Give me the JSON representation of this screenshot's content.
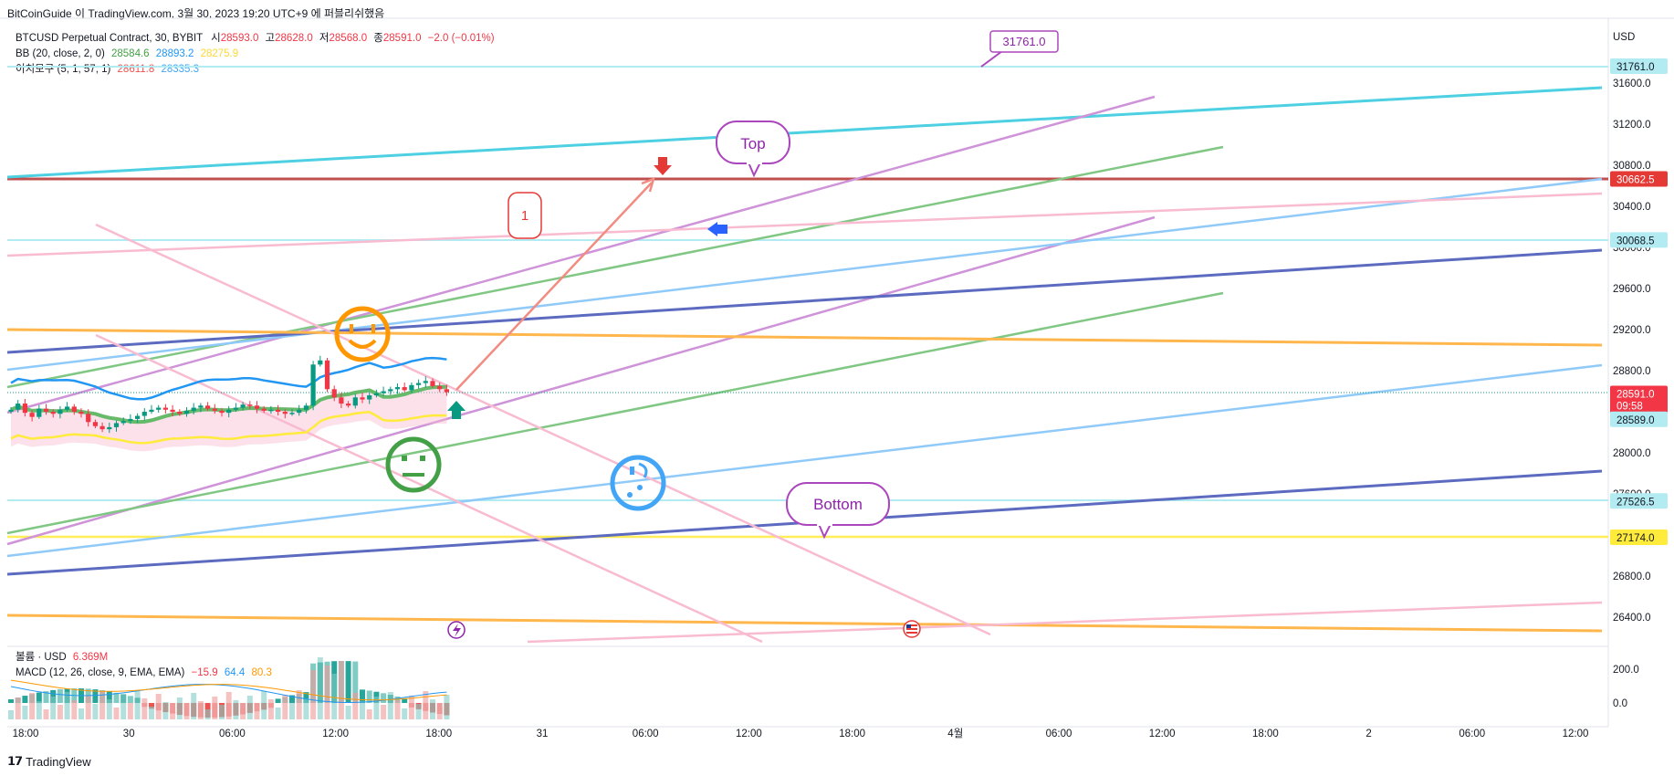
{
  "header": {
    "text": "BitCoinGuide 이 TradingView.com, 3월 30, 2023 19:20 UTC+9 에 퍼블리쉬했음"
  },
  "legend": {
    "symbol": "BTCUSD Perpetual Contract, 30, BYBIT",
    "ohlc": [
      {
        "label": "시",
        "value": "28593.0"
      },
      {
        "label": "고",
        "value": "28628.0"
      },
      {
        "label": "저",
        "value": "28568.0"
      },
      {
        "label": "종",
        "value": "28591.0"
      }
    ],
    "change": "−2.0 (−0.01%)",
    "bb": {
      "name": "BB (20, close, 2, 0)",
      "values": [
        "28584.6",
        "28893.2",
        "28275.9"
      ]
    },
    "ichimoku": {
      "name": "이치모쿠 (5, 1, 57, 1)",
      "values": [
        "28611.8",
        "28335.3"
      ]
    },
    "volume": {
      "name": "볼륨 · USD",
      "value": "6.369M"
    },
    "macd": {
      "name": "MACD (12, 26, close, 9, EMA, EMA)",
      "values": [
        "−15.9",
        "64.4",
        "80.3"
      ]
    }
  },
  "axis": {
    "currency": "USD",
    "price_ticks": [
      "31600.0",
      "31200.0",
      "30800.0",
      "30400.0",
      "30000.0",
      "29600.0",
      "29200.0",
      "28800.0",
      "28400.0",
      "28000.0",
      "27600.0",
      "27200.0",
      "26800.0",
      "26400.0"
    ],
    "macd_ticks": [
      "200.0",
      "0.0"
    ],
    "time_ticks": [
      "18:00",
      "30",
      "06:00",
      "12:00",
      "18:00",
      "31",
      "06:00",
      "12:00",
      "18:00",
      "4월",
      "06:00",
      "12:00",
      "18:00",
      "2",
      "06:00",
      "12:00"
    ]
  },
  "price_labels": [
    {
      "text": "31761.0",
      "bg": "#b2ebf2"
    },
    {
      "text": "30662.5",
      "bg": "#e53935"
    },
    {
      "text": "30068.5",
      "bg": "#b2ebf2"
    },
    {
      "text": "28591.0",
      "sub": "09:58",
      "bg": "#f23645"
    },
    {
      "text": "28589.0",
      "bg": "#b2ebf2"
    },
    {
      "text": "27526.5",
      "bg": "#b2ebf2"
    },
    {
      "text": "27174.0",
      "bg": "#ffeb3b"
    }
  ],
  "annotations": {
    "callout_top_value": "31761.0",
    "top": "Top",
    "bottom": "Bottom",
    "one": "1"
  },
  "chart_data": {
    "type": "candlestick",
    "symbol": "BTCUSD Perpetual Contract, 30, BYBIT",
    "interval": "30",
    "ylim": [
      26200,
      32000
    ],
    "horizontal_levels": [
      31761.0,
      30662.5,
      30068.5,
      28589.0,
      27526.5,
      27174.0
    ],
    "last_price": 28591.0,
    "ohlc": {
      "open": 28593.0,
      "high": 28628.0,
      "low": 28568.0,
      "close": 28591.0
    },
    "bollinger": {
      "basis": 28584.6,
      "upper": 28893.2,
      "lower": 28275.9
    },
    "ichimoku": {
      "conversion": 28611.8,
      "base": 28335.3
    },
    "macd": {
      "macd": -15.9,
      "signal": 64.4,
      "histogram": 80.3
    },
    "volume": "6.369M",
    "candles_approx": [
      28420,
      28480,
      28390,
      28350,
      28430,
      28400,
      28380,
      28420,
      28450,
      28400,
      28380,
      28300,
      28260,
      28230,
      28250,
      28290,
      28310,
      28330,
      28360,
      28400,
      28420,
      28440,
      28420,
      28400,
      28380,
      28410,
      28440,
      28460,
      28430,
      28410,
      28390,
      28420,
      28440,
      28470,
      28460,
      28430,
      28410,
      28420,
      28400,
      28380,
      28390,
      28420,
      28460,
      28860,
      28900,
      28620,
      28540,
      28480,
      28460,
      28540,
      28520,
      28560,
      28580,
      28600,
      28620,
      28640,
      28610,
      28660,
      28680,
      28700,
      28650,
      28620,
      28591
    ]
  },
  "colors": {
    "up": "#089981",
    "down": "#f23645",
    "cyan": "#4dd0e1",
    "purple": "#ce93d8",
    "green": "#81c784",
    "blue_light": "#90caf9",
    "navy": "#5c6bc0",
    "orange": "#ffb74d",
    "yellow": "#ffee58",
    "pink": "#f8bbd0",
    "red": "#e53935"
  }
}
